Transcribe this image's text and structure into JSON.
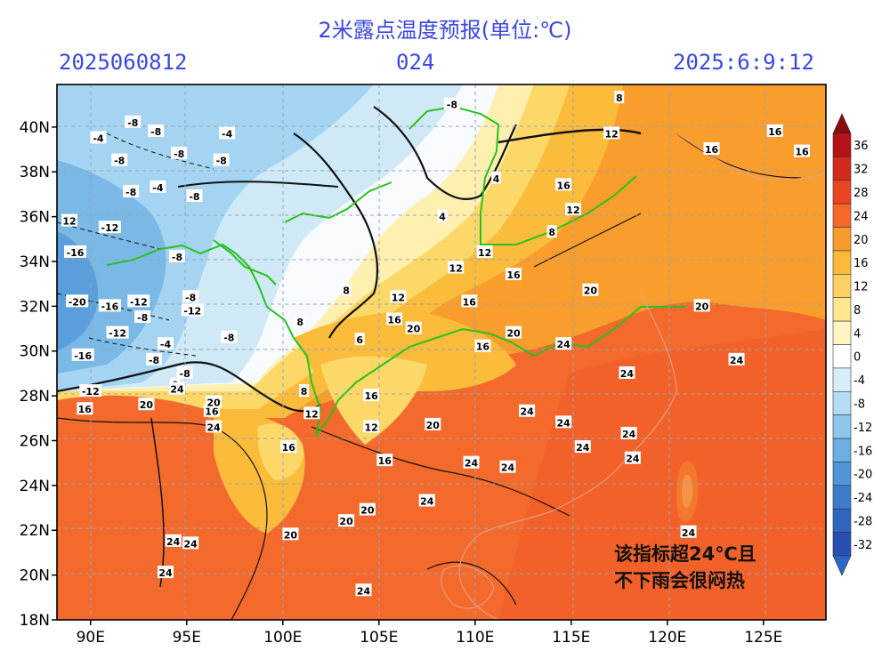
{
  "header": {
    "title": "2米露点温度预报(单位:℃)",
    "run_time": "2025060812",
    "lead_hours": "024",
    "valid_time": "2025:6:9:12"
  },
  "map": {
    "lat_labels": [
      "40N",
      "38N",
      "36N",
      "34N",
      "32N",
      "30N",
      "28N",
      "26N",
      "24N",
      "22N",
      "20N",
      "18N"
    ],
    "lon_labels": [
      "90E",
      "95E",
      "100E",
      "105E",
      "110E",
      "115E",
      "120E",
      "125E"
    ],
    "contour_labels": [
      {
        "t": "-8",
        "lon": 108.8,
        "lat": 41.0
      },
      {
        "t": "8",
        "lon": 117.5,
        "lat": 41.3
      },
      {
        "t": "12",
        "lon": 117.1,
        "lat": 39.7
      },
      {
        "t": "16",
        "lon": 122.3,
        "lat": 39.0
      },
      {
        "t": "16",
        "lon": 125.6,
        "lat": 39.8
      },
      {
        "t": "16",
        "lon": 127.0,
        "lat": 38.9
      },
      {
        "t": "-8",
        "lon": 92.2,
        "lat": 40.2
      },
      {
        "t": "-4",
        "lon": 90.4,
        "lat": 39.5
      },
      {
        "t": "-8",
        "lon": 93.4,
        "lat": 39.8
      },
      {
        "t": "-4",
        "lon": 97.1,
        "lat": 39.7
      },
      {
        "t": "-8",
        "lon": 91.5,
        "lat": 38.5
      },
      {
        "t": "-8",
        "lon": 94.6,
        "lat": 38.8
      },
      {
        "t": "-8",
        "lon": 96.8,
        "lat": 38.5
      },
      {
        "t": "-8",
        "lon": 92.1,
        "lat": 37.1
      },
      {
        "t": "-4",
        "lon": 93.5,
        "lat": 37.3
      },
      {
        "t": "-8",
        "lon": 95.4,
        "lat": 36.9
      },
      {
        "t": "4",
        "lon": 108.3,
        "lat": 36.0
      },
      {
        "t": "8",
        "lon": 114.0,
        "lat": 35.3
      },
      {
        "t": "12",
        "lon": 115.1,
        "lat": 36.3
      },
      {
        "t": "16",
        "lon": 114.6,
        "lat": 37.4
      },
      {
        "t": "4",
        "lon": 111.1,
        "lat": 37.7
      },
      {
        "t": "12",
        "lon": 88.9,
        "lat": 35.8
      },
      {
        "t": "-12",
        "lon": 91.0,
        "lat": 35.5
      },
      {
        "t": "-16",
        "lon": 89.2,
        "lat": 34.4
      },
      {
        "t": "-8",
        "lon": 94.5,
        "lat": 34.2
      },
      {
        "t": "12",
        "lon": 110.5,
        "lat": 34.4
      },
      {
        "t": "12",
        "lon": 109.0,
        "lat": 33.7
      },
      {
        "t": "16",
        "lon": 112.0,
        "lat": 33.4
      },
      {
        "t": "20",
        "lon": 116.0,
        "lat": 32.7
      },
      {
        "t": "20",
        "lon": 121.8,
        "lat": 32.0
      },
      {
        "t": "-20",
        "lon": 89.3,
        "lat": 32.2
      },
      {
        "t": "-16",
        "lon": 91.0,
        "lat": 32.0
      },
      {
        "t": "-12",
        "lon": 92.5,
        "lat": 32.2
      },
      {
        "t": "-8",
        "lon": 95.2,
        "lat": 32.4
      },
      {
        "t": "-12",
        "lon": 95.3,
        "lat": 31.8
      },
      {
        "t": "-8",
        "lon": 92.7,
        "lat": 31.5
      },
      {
        "t": "-12",
        "lon": 91.4,
        "lat": 30.8
      },
      {
        "t": "-4",
        "lon": 93.9,
        "lat": 30.3
      },
      {
        "t": "-8",
        "lon": 97.2,
        "lat": 30.6
      },
      {
        "t": "-16",
        "lon": 89.6,
        "lat": 29.8
      },
      {
        "t": "-8",
        "lon": 93.3,
        "lat": 29.6
      },
      {
        "t": "8",
        "lon": 103.3,
        "lat": 32.7
      },
      {
        "t": "12",
        "lon": 106.0,
        "lat": 32.4
      },
      {
        "t": "16",
        "lon": 105.8,
        "lat": 31.4
      },
      {
        "t": "20",
        "lon": 106.8,
        "lat": 31.0
      },
      {
        "t": "16",
        "lon": 109.7,
        "lat": 32.2
      },
      {
        "t": "8",
        "lon": 100.9,
        "lat": 31.3
      },
      {
        "t": "6",
        "lon": 104.0,
        "lat": 30.5
      },
      {
        "t": "20",
        "lon": 112.0,
        "lat": 30.8
      },
      {
        "t": "16",
        "lon": 110.4,
        "lat": 30.2
      },
      {
        "t": "24",
        "lon": 114.6,
        "lat": 30.3
      },
      {
        "t": "24",
        "lon": 123.6,
        "lat": 29.6
      },
      {
        "t": "24",
        "lon": 117.9,
        "lat": 29.0
      },
      {
        "t": "-12",
        "lon": 90.0,
        "lat": 28.2
      },
      {
        "t": "-8",
        "lon": 94.9,
        "lat": 29.0
      },
      {
        "t": "8",
        "lon": 94.4,
        "lat": 28.5
      },
      {
        "t": "16",
        "lon": 89.7,
        "lat": 27.4
      },
      {
        "t": "20",
        "lon": 92.9,
        "lat": 27.6
      },
      {
        "t": "24",
        "lon": 94.5,
        "lat": 28.3
      },
      {
        "t": "16",
        "lon": 96.3,
        "lat": 27.3
      },
      {
        "t": "20",
        "lon": 96.4,
        "lat": 27.7
      },
      {
        "t": "24",
        "lon": 96.4,
        "lat": 26.6
      },
      {
        "t": "8",
        "lon": 101.1,
        "lat": 28.2
      },
      {
        "t": "12",
        "lon": 101.5,
        "lat": 27.2
      },
      {
        "t": "16",
        "lon": 104.6,
        "lat": 28.0
      },
      {
        "t": "12",
        "lon": 104.6,
        "lat": 26.6
      },
      {
        "t": "20",
        "lon": 107.8,
        "lat": 26.7
      },
      {
        "t": "24",
        "lon": 112.7,
        "lat": 27.3
      },
      {
        "t": "24",
        "lon": 114.6,
        "lat": 26.8
      },
      {
        "t": "24",
        "lon": 118.0,
        "lat": 26.3
      },
      {
        "t": "24",
        "lon": 115.6,
        "lat": 25.7
      },
      {
        "t": "24",
        "lon": 118.2,
        "lat": 25.2
      },
      {
        "t": "16",
        "lon": 100.3,
        "lat": 25.7
      },
      {
        "t": "16",
        "lon": 105.3,
        "lat": 25.1
      },
      {
        "t": "24",
        "lon": 109.8,
        "lat": 25.0
      },
      {
        "t": "24",
        "lon": 111.7,
        "lat": 24.8
      },
      {
        "t": "24",
        "lon": 107.5,
        "lat": 23.3
      },
      {
        "t": "20",
        "lon": 104.4,
        "lat": 22.9
      },
      {
        "t": "20",
        "lon": 103.3,
        "lat": 22.4
      },
      {
        "t": "20",
        "lon": 100.4,
        "lat": 21.8
      },
      {
        "t": "24",
        "lon": 94.3,
        "lat": 21.5
      },
      {
        "t": "24",
        "lon": 95.2,
        "lat": 21.4
      },
      {
        "t": "24",
        "lon": 93.9,
        "lat": 20.1
      },
      {
        "t": "24",
        "lon": 104.2,
        "lat": 19.3
      },
      {
        "t": "24",
        "lon": 121.1,
        "lat": 21.9
      }
    ]
  },
  "colorbar": {
    "labels": [
      "36",
      "32",
      "28",
      "24",
      "20",
      "16",
      "12",
      "8",
      "4",
      "0",
      "-4",
      "-8",
      "-12",
      "-16",
      "-20",
      "-24",
      "-28",
      "-32"
    ],
    "colors": [
      "#b5121a",
      "#d32a1e",
      "#ea4423",
      "#f5682a",
      "#f99b2b",
      "#fbb839",
      "#fcd063",
      "#fde690",
      "#fff5c2",
      "#ffffff",
      "#d7eef9",
      "#b2ddf3",
      "#8cc6ec",
      "#6aaee2",
      "#4f95d7",
      "#3c7ccb",
      "#3065bf",
      "#2850b0"
    ]
  },
  "annotation": {
    "line1": "该指标超24℃且",
    "line2": "不下雨会很闷热"
  }
}
